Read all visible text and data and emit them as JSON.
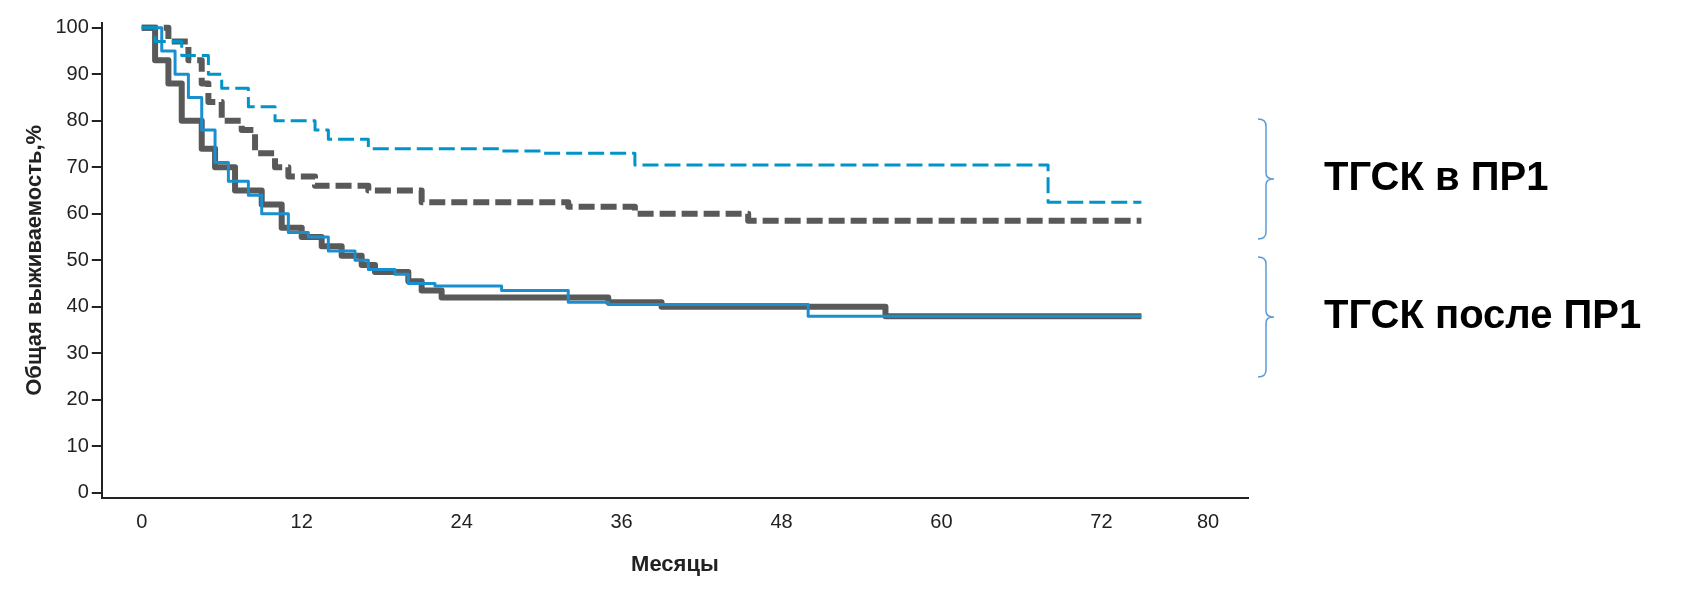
{
  "chart_data": {
    "type": "step",
    "xlabel": "Месяцы",
    "ylabel": "Общая выживаемость,%",
    "xlim": [
      -3,
      83
    ],
    "xticks": [
      0,
      12,
      24,
      36,
      48,
      60,
      72,
      80
    ],
    "ylim": [
      -1,
      101
    ],
    "yticks": [
      0,
      10,
      20,
      30,
      40,
      50,
      60,
      70,
      80,
      90,
      100
    ],
    "grid": false,
    "legend": false,
    "marker": "none",
    "annotations": [
      "ТГСК в ПР1",
      "ТГСК после ПР1"
    ],
    "series": [
      {
        "color": "#0094c8",
        "line_style": "dashed",
        "x": [
          0,
          1,
          3,
          5,
          6,
          8,
          10,
          13,
          14,
          17,
          27,
          30,
          37,
          68,
          75
        ],
        "values": [
          100,
          97,
          94,
          90,
          87,
          83,
          80,
          78,
          76,
          74,
          73.5,
          73,
          70.5,
          62.5,
          62.5
        ]
      },
      {
        "color": "#595959",
        "line_style": "dashed",
        "x": [
          0,
          1.5,
          2,
          3.5,
          4.5,
          5,
          6,
          7.5,
          8.5,
          10,
          11,
          13,
          17,
          21,
          32,
          37,
          45.5,
          75
        ],
        "values": [
          100,
          100,
          97,
          93,
          88,
          84,
          80,
          78,
          73,
          70,
          68,
          66,
          65,
          62.5,
          61.5,
          60,
          58.5,
          58.5
        ]
      },
      {
        "color": "#1a8fd0",
        "line_style": "solid",
        "x": [
          0,
          1.5,
          2.5,
          3.5,
          4.5,
          5.5,
          6.5,
          8,
          9,
          11,
          12.5,
          14,
          16,
          17,
          19,
          20,
          22,
          27,
          32,
          35,
          42,
          50,
          75
        ],
        "values": [
          100,
          95,
          90,
          85,
          78,
          71,
          67,
          64,
          60,
          56,
          55,
          52,
          50,
          48,
          47,
          45,
          44.5,
          43.5,
          41,
          40.5,
          40.5,
          38,
          38
        ]
      },
      {
        "color": "#595959",
        "line_style": "solid",
        "x": [
          0,
          1,
          2,
          3,
          4.5,
          5.5,
          7,
          9,
          10.5,
          12,
          13.5,
          15,
          16.5,
          17.5,
          20,
          21,
          22.5,
          35,
          39,
          55.8,
          75
        ],
        "values": [
          100,
          93,
          88,
          80,
          74,
          70,
          65,
          62,
          57,
          55,
          53,
          51,
          49,
          47.5,
          45.5,
          43.5,
          42,
          41,
          40,
          38,
          38
        ]
      }
    ]
  }
}
